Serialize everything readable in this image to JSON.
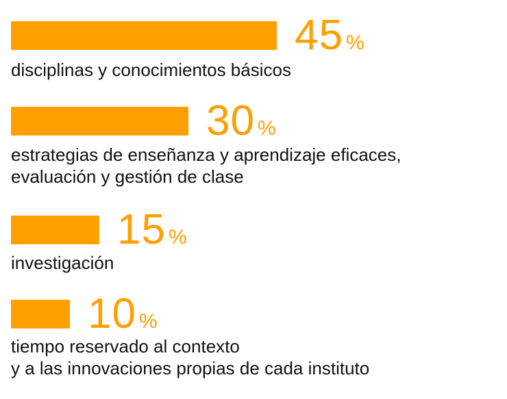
{
  "chart_data": {
    "type": "bar",
    "orientation": "horizontal",
    "unit": "%",
    "bar_color": "#ff9f00",
    "text_color": "#111111",
    "categories": [
      [
        "disciplinas y conocimientos básicos"
      ],
      [
        "estrategias de enseñanza y aprendizaje eficaces,",
        "evaluación y gestión de clase"
      ],
      [
        "investigación"
      ],
      [
        "tiempo reservado al contexto",
        "y a las innovaciones propias de cada instituto"
      ]
    ],
    "values": [
      45,
      30,
      15,
      10
    ]
  }
}
